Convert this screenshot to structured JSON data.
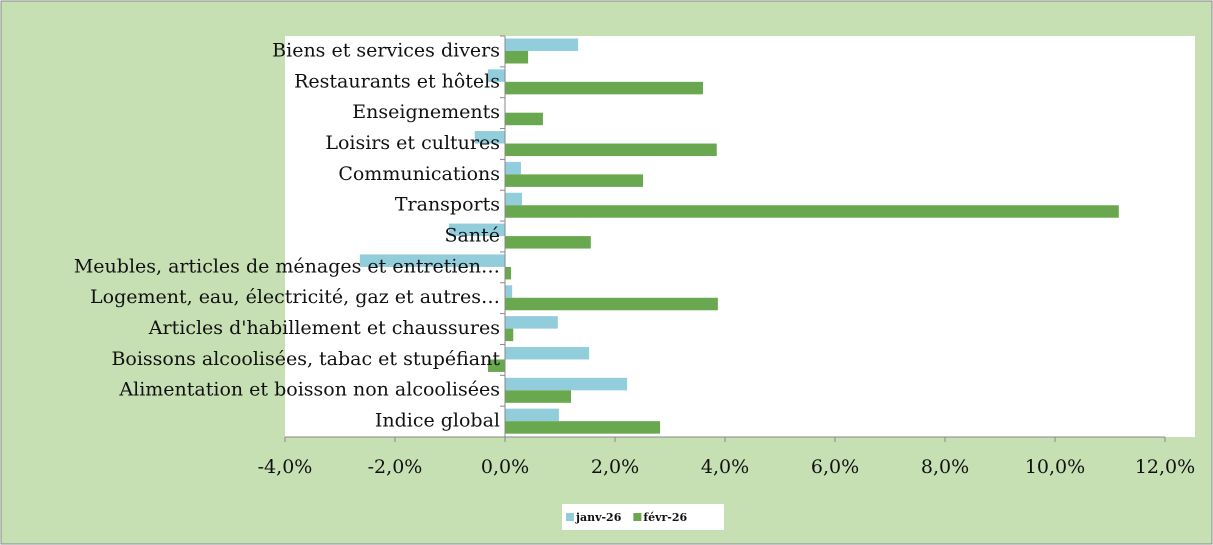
{
  "chart_data": {
    "type": "hbar",
    "categories": [
      "Biens et services divers",
      "Restaurants et hôtels",
      "Enseignements",
      "Loisirs et cultures",
      "Communications",
      "Transports",
      "Santé",
      "Meubles, articles de ménages et entretien…",
      "Logement, eau, électricité, gaz et autres…",
      "Articles d'habillement et chaussures",
      "Boissons alcoolisées, tabac et stupéfiant",
      "Alimentation et boisson non alcoolisées",
      "Indice global"
    ],
    "series": [
      {
        "name": "janv-26",
        "color": "#92cddc",
        "values": [
          1.33,
          -0.31,
          0,
          -0.55,
          0.29,
          0.31,
          -1.02,
          -2.64,
          0.13,
          0.96,
          1.53,
          2.22,
          0.98
        ]
      },
      {
        "name": "févr-26",
        "color": "#6aa84f",
        "values": [
          0.42,
          3.6,
          0.69,
          3.85,
          2.51,
          11.16,
          1.56,
          0.11,
          3.87,
          0.15,
          -0.31,
          1.2,
          2.82
        ]
      }
    ],
    "xlim": [
      -4,
      12
    ],
    "xticks": [
      {
        "value": -4,
        "label": "-4,0%"
      },
      {
        "value": -2,
        "label": "-2,0%"
      },
      {
        "value": 0,
        "label": "0,0%"
      },
      {
        "value": 2,
        "label": "2,0%"
      },
      {
        "value": 4,
        "label": "4,0%"
      },
      {
        "value": 6,
        "label": "6,0%"
      },
      {
        "value": 8,
        "label": "8,0%"
      },
      {
        "value": 10,
        "label": "10,0%"
      },
      {
        "value": 12,
        "label": "12,0%"
      }
    ],
    "legend": "bottom"
  }
}
